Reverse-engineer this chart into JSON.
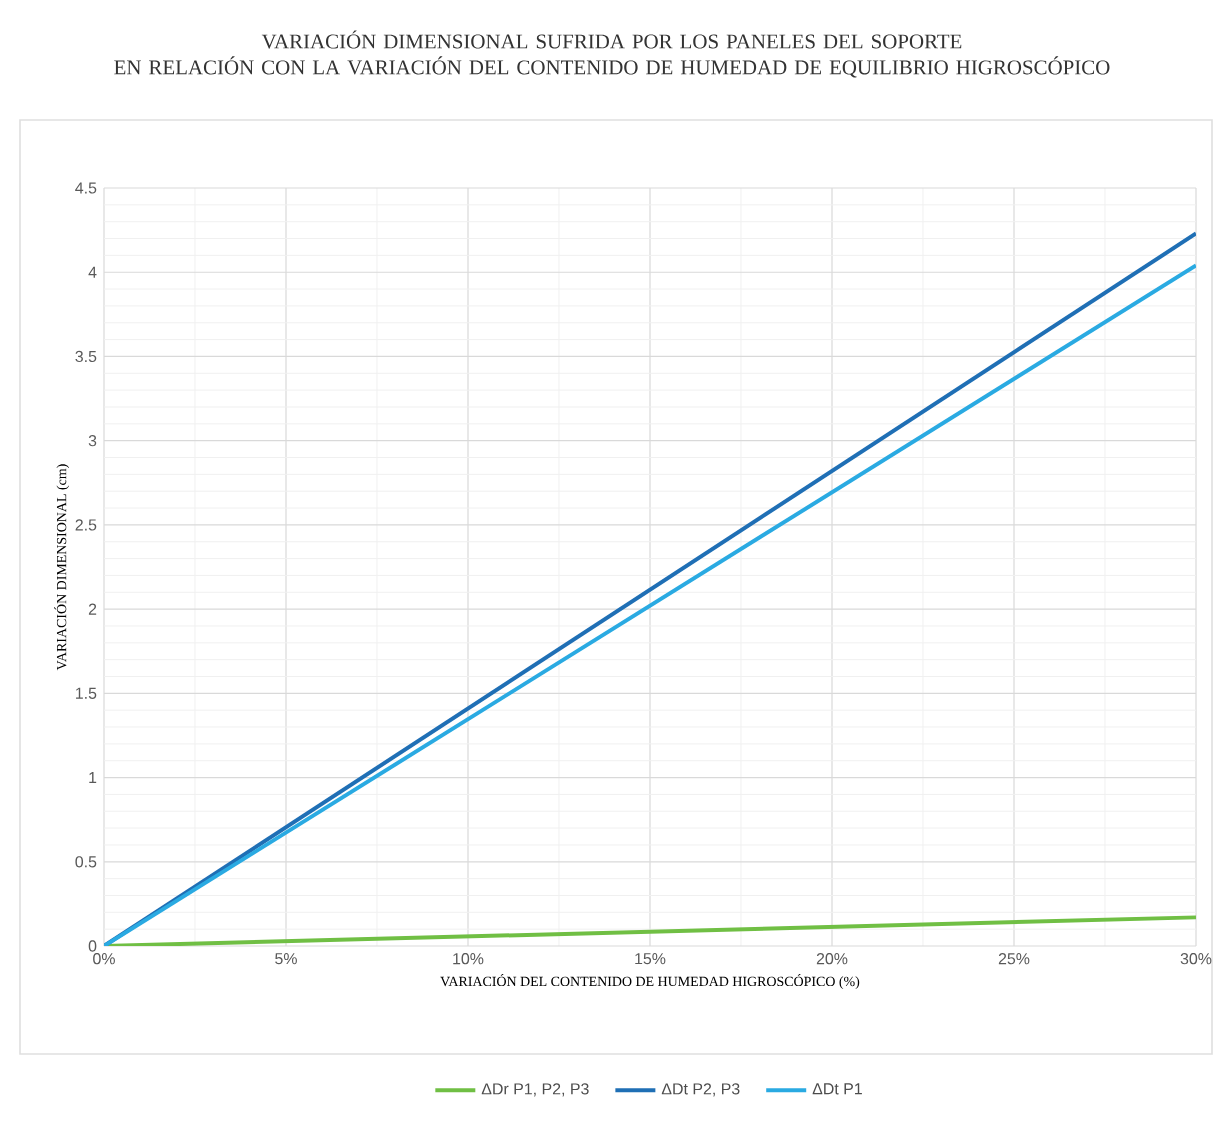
{
  "chart_data": {
    "type": "line",
    "title": "VARIACIÓN DIMENSIONAL SUFRIDA POR LOS PANELES DEL SOPORTE\nEN RELACIÓN CON LA VARIACIÓN DEL CONTENIDO DE HUMEDAD DE EQUILIBRIO HIGROSCÓPICO",
    "xlabel": "VARIACIÓN DEL CONTENIDO DE HUMEDAD HIGROSCÓPICO (%)",
    "ylabel": "VARIACIÓN DIMENSIONAL (cm)",
    "x": [
      0,
      30
    ],
    "series": [
      {
        "name": "ΔDr P1, P2, P3",
        "color": "#70bf44",
        "values": [
          0,
          0.17
        ]
      },
      {
        "name": "ΔDt P2, P3",
        "color": "#1f6fb5",
        "values": [
          0,
          4.23
        ]
      },
      {
        "name": "ΔDt P1",
        "color": "#2aaae2",
        "values": [
          0,
          4.04
        ]
      }
    ],
    "xlim": [
      0,
      30
    ],
    "ylim": [
      0,
      4.5
    ],
    "xticks": [
      {
        "value": 0,
        "label": "0%"
      },
      {
        "value": 5,
        "label": "5%"
      },
      {
        "value": 10,
        "label": "10%"
      },
      {
        "value": 15,
        "label": "15%"
      },
      {
        "value": 20,
        "label": "20%"
      },
      {
        "value": 25,
        "label": "25%"
      },
      {
        "value": 30,
        "label": "30%"
      }
    ],
    "yticks": [
      0,
      0.5,
      1,
      1.5,
      2,
      2.5,
      3,
      3.5,
      4,
      4.5
    ],
    "grid": true,
    "legend": "bottom",
    "marker": "none",
    "line_style": "solid"
  }
}
